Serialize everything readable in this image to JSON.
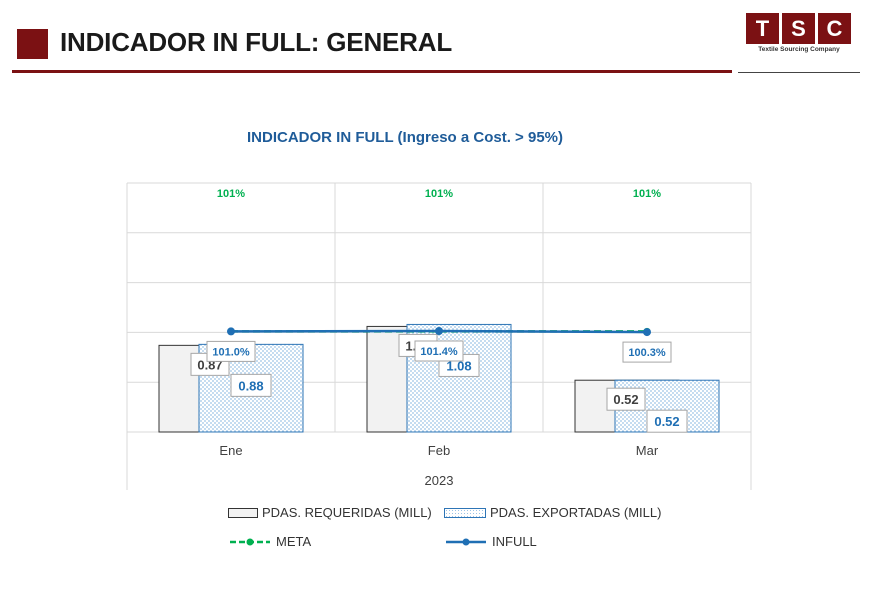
{
  "header": {
    "title": "INDICADOR IN FULL: GENERAL",
    "logo_letters": [
      "T",
      "S",
      "C"
    ],
    "logo_subtitle": "Textile Sourcing Company",
    "brand_color": "#7b1113"
  },
  "chart_data": {
    "type": "bar",
    "title": "INDICADOR IN FULL (Ingreso a Cost. > 95%)",
    "categories": [
      "Ene",
      "Feb",
      "Mar"
    ],
    "xlabel": "2023",
    "series": [
      {
        "name": "PDAS. REQUERIDAS (MILL)",
        "type": "bar",
        "values": [
          0.87,
          1.06,
          0.52
        ],
        "labels": [
          "0.87",
          "1.06",
          "0.52"
        ],
        "color": "#f2f2f2"
      },
      {
        "name": "PDAS. EXPORTADAS (MILL)",
        "type": "bar",
        "values": [
          0.88,
          1.08,
          0.52
        ],
        "labels": [
          "0.88",
          "1.08",
          "0.52"
        ],
        "color": "#2e75b6"
      },
      {
        "name": "META",
        "type": "line",
        "values": [
          1.01,
          1.01,
          1.01
        ],
        "labels": [
          "101%",
          "101%",
          "101%"
        ],
        "color": "#00b050"
      },
      {
        "name": "INFULL",
        "type": "line",
        "values": [
          1.01,
          1.014,
          1.003
        ],
        "labels": [
          "101.0%",
          "101.4%",
          "100.3%"
        ],
        "color": "#1f6fb4"
      }
    ],
    "ylim": [
      0,
      2.5
    ],
    "grid": true,
    "legend": "bottom"
  }
}
